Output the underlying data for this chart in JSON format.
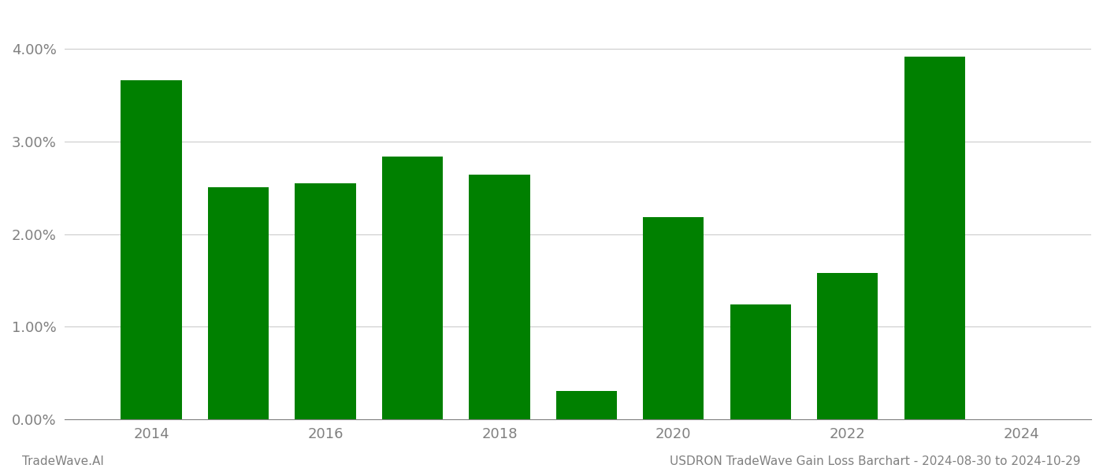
{
  "years": [
    2014,
    2015,
    2016,
    2017,
    2018,
    2019,
    2020,
    2021,
    2022,
    2023
  ],
  "values": [
    0.0366,
    0.0251,
    0.0255,
    0.0284,
    0.0264,
    0.0031,
    0.0218,
    0.0124,
    0.0158,
    0.0392
  ],
  "bar_color": "#008000",
  "background_color": "#ffffff",
  "ylim": [
    0,
    0.044
  ],
  "yticks": [
    0.0,
    0.01,
    0.02,
    0.03,
    0.04
  ],
  "ytick_labels": [
    "0.00%",
    "1.00%",
    "2.00%",
    "3.00%",
    "4.00%"
  ],
  "xticks": [
    2014,
    2016,
    2018,
    2020,
    2022,
    2024
  ],
  "xlim": [
    2013.0,
    2024.8
  ],
  "footer_left": "TradeWave.AI",
  "footer_right": "USDRON TradeWave Gain Loss Barchart - 2024-08-30 to 2024-10-29",
  "footer_color": "#808080",
  "grid_color": "#cccccc",
  "tick_color": "#808080",
  "spine_color": "#808080",
  "bar_width": 0.7,
  "tick_fontsize": 13,
  "footer_fontsize": 11
}
